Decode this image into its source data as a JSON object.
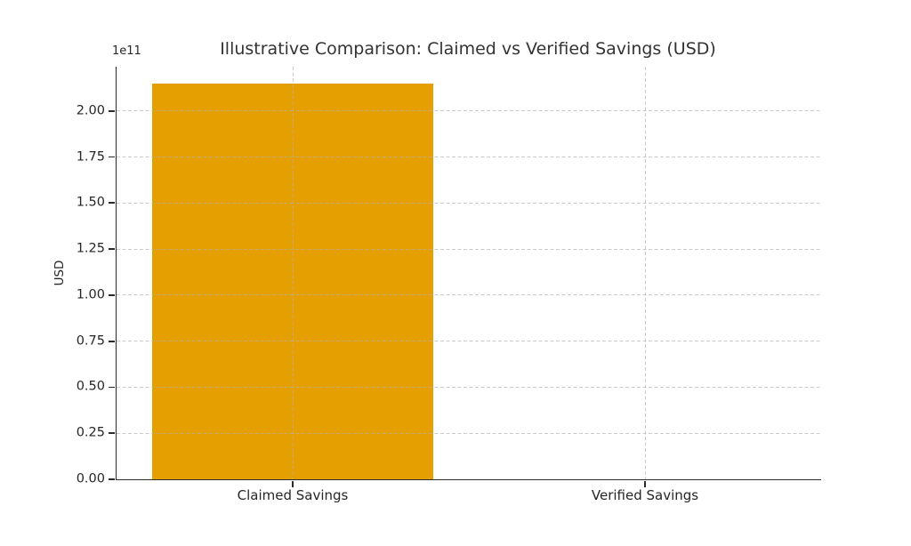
{
  "chart_data": {
    "type": "bar",
    "title": "Illustrative Comparison: Claimed vs Verified Savings (USD)",
    "ylabel": "USD",
    "offset_text": "1e11",
    "categories": [
      "Claimed Savings",
      "Verified Savings"
    ],
    "values": [
      215000000000,
      0
    ],
    "yticks": [
      0,
      0.25,
      0.5,
      0.75,
      1,
      1.25,
      1.5,
      1.75,
      2
    ],
    "ytick_labels": [
      "0.00",
      "0.25",
      "0.50",
      "0.75",
      "1.00",
      "1.25",
      "1.50",
      "1.75",
      "2.00"
    ],
    "scale_factor": 100000000000,
    "ylim": [
      0,
      224000000000
    ],
    "bar_color": "#E69F00",
    "bar_width_fraction": 0.8,
    "grid": true,
    "grid_style": "dashed",
    "grid_color": "#b0b0b0",
    "axis_color": "#2b2b2b",
    "text_color": "#262626",
    "legend": "none"
  }
}
